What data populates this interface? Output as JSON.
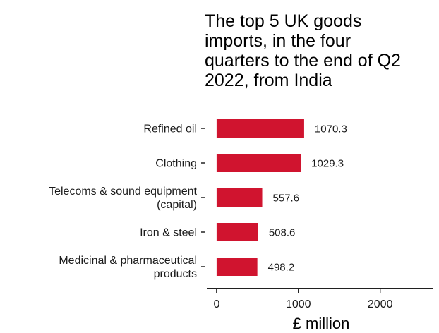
{
  "chart_data": {
    "type": "bar",
    "orientation": "horizontal",
    "title_lines": [
      "The top 5 UK goods",
      "imports, in the four",
      "quarters to the end of Q2",
      "2022, from India"
    ],
    "categories": [
      [
        "Refined oil"
      ],
      [
        "Clothing"
      ],
      [
        "Telecoms & sound equipment",
        "(capital)"
      ],
      [
        "Iron & steel"
      ],
      [
        "Medicinal & pharmaceutical",
        "products"
      ]
    ],
    "values": [
      1070.3,
      1029.3,
      557.6,
      508.6,
      498.2
    ],
    "data_labels": [
      "1070.3",
      "1029.3",
      "557.6",
      "508.6",
      "498.2"
    ],
    "xlabel": "£ million",
    "ylabel": "",
    "xlim": [
      -120,
      2650
    ],
    "x_ticks": [
      0,
      1000,
      2000
    ],
    "x_tick_labels": [
      "0",
      "1000",
      "2000"
    ],
    "grid": false,
    "colors": {
      "bar": "#d0142f",
      "axis": "#000000",
      "text": "#1a1a1a"
    }
  }
}
